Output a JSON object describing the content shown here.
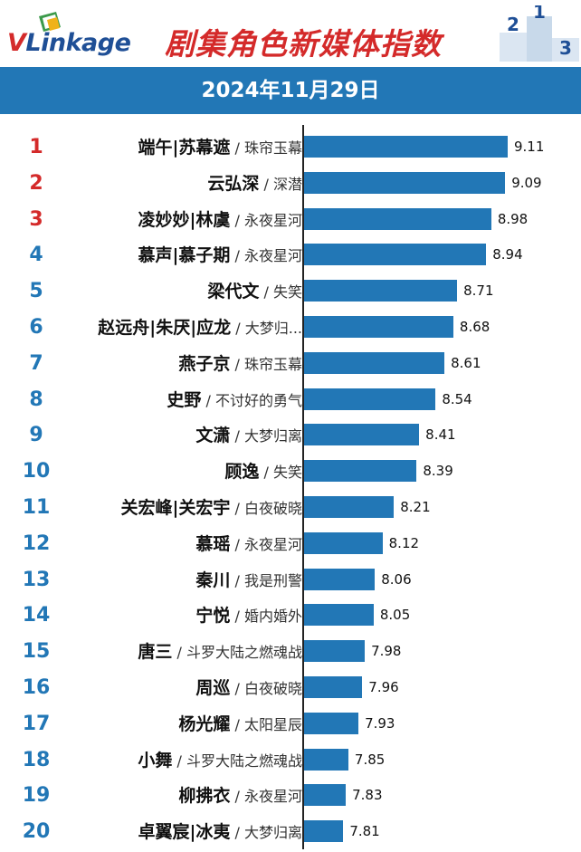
{
  "header": {
    "logo_text_v": "V",
    "logo_text_rest": "Linkage",
    "title": "剧集角色新媒体指数",
    "podium_labels": [
      "2",
      "1",
      "3"
    ]
  },
  "date": "2024年11月29日",
  "colors": {
    "bar": "#2277b6",
    "rank_top": "#d42a2a",
    "rank_rest": "#2277b6",
    "title": "#d42a2a"
  },
  "chart_data": {
    "type": "bar",
    "orientation": "horizontal",
    "title": "剧集角色新媒体指数",
    "subtitle": "2024年11月29日",
    "xlim": [
      7.5,
      9.2
    ],
    "grid": false,
    "legend": "none",
    "rows": [
      {
        "rank": "1",
        "name": "端午|苏幕遮",
        "drama": "珠帘玉幕",
        "value": 9.11
      },
      {
        "rank": "2",
        "name": "云弘深",
        "drama": "深潜",
        "value": 9.09
      },
      {
        "rank": "3",
        "name": "凌妙妙|林虞",
        "drama": "永夜星河",
        "value": 8.98
      },
      {
        "rank": "4",
        "name": "慕声|慕子期",
        "drama": "永夜星河",
        "value": 8.94
      },
      {
        "rank": "5",
        "name": "梁代文",
        "drama": "失笑",
        "value": 8.71
      },
      {
        "rank": "6",
        "name": "赵远舟|朱厌|应龙",
        "drama": "大梦归...",
        "value": 8.68
      },
      {
        "rank": "7",
        "name": "燕子京",
        "drama": "珠帘玉幕",
        "value": 8.61
      },
      {
        "rank": "8",
        "name": "史野",
        "drama": "不讨好的勇气",
        "value": 8.54
      },
      {
        "rank": "9",
        "name": "文潇",
        "drama": "大梦归离",
        "value": 8.41
      },
      {
        "rank": "10",
        "name": "顾逸",
        "drama": "失笑",
        "value": 8.39
      },
      {
        "rank": "11",
        "name": "关宏峰|关宏宇",
        "drama": "白夜破晓",
        "value": 8.21
      },
      {
        "rank": "12",
        "name": "慕瑶",
        "drama": "永夜星河",
        "value": 8.12
      },
      {
        "rank": "13",
        "name": "秦川",
        "drama": "我是刑警",
        "value": 8.06
      },
      {
        "rank": "14",
        "name": "宁悦",
        "drama": "婚内婚外",
        "value": 8.05
      },
      {
        "rank": "15",
        "name": "唐三",
        "drama": "斗罗大陆之燃魂战",
        "value": 7.98
      },
      {
        "rank": "16",
        "name": "周巡",
        "drama": "白夜破晓",
        "value": 7.96
      },
      {
        "rank": "17",
        "name": "杨光耀",
        "drama": "太阳星辰",
        "value": 7.93
      },
      {
        "rank": "18",
        "name": "小舞",
        "drama": "斗罗大陆之燃魂战",
        "value": 7.85
      },
      {
        "rank": "19",
        "name": "柳拂衣",
        "drama": "永夜星河",
        "value": 7.83
      },
      {
        "rank": "20",
        "name": "卓翼宸|冰夷",
        "drama": "大梦归离",
        "value": 7.81
      }
    ]
  }
}
